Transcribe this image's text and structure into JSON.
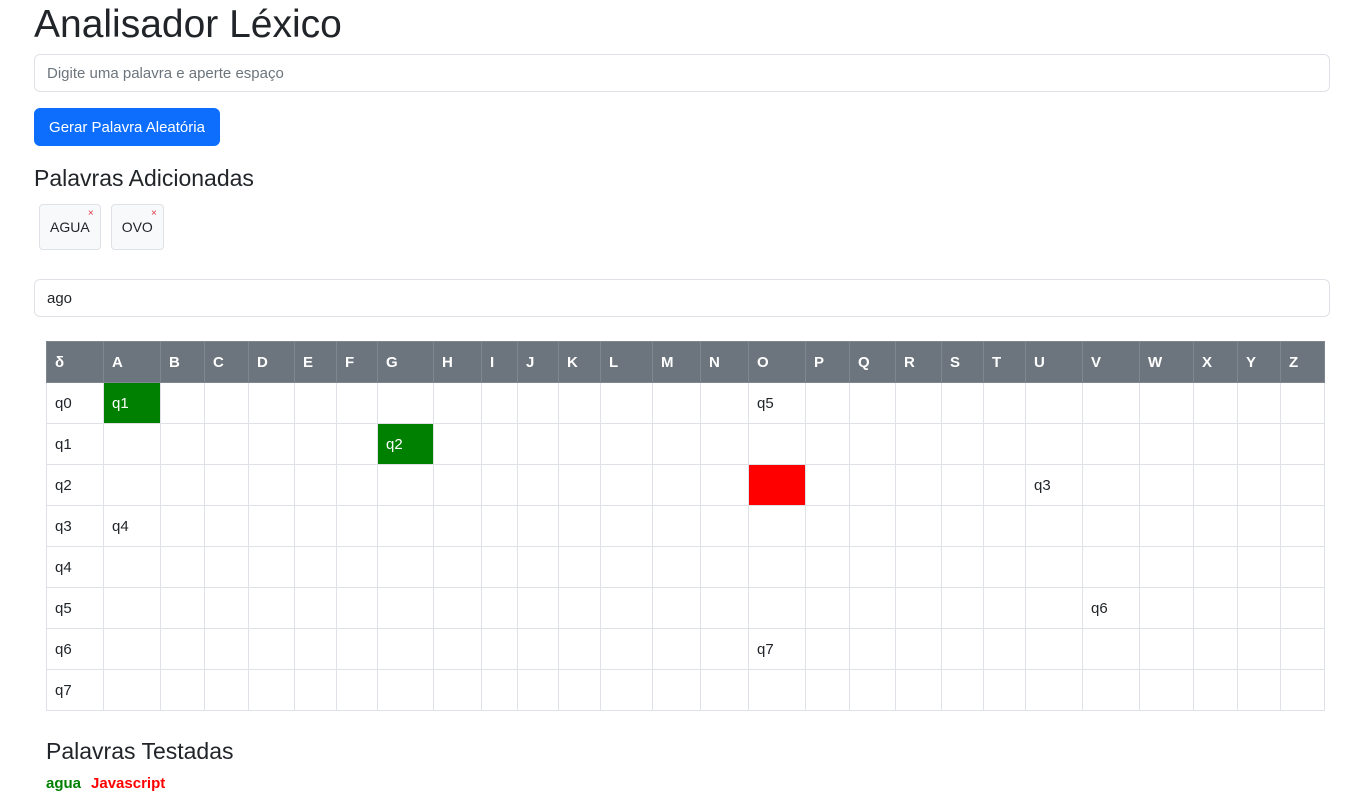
{
  "title": "Analisador Léxico",
  "word_input": {
    "placeholder": "Digite uma palavra e aperte espaço",
    "value": ""
  },
  "random_button": "Gerar Palavra Aleatória",
  "added_section": {
    "title": "Palavras Adicionadas",
    "words": [
      {
        "label": "AGUA",
        "remove": "×"
      },
      {
        "label": "OVO",
        "remove": "×"
      }
    ]
  },
  "test_input": {
    "value": "ago"
  },
  "table": {
    "corner": "δ",
    "columns": [
      "A",
      "B",
      "C",
      "D",
      "E",
      "F",
      "G",
      "H",
      "I",
      "J",
      "K",
      "L",
      "M",
      "N",
      "O",
      "P",
      "Q",
      "R",
      "S",
      "T",
      "U",
      "V",
      "W",
      "X",
      "Y",
      "Z"
    ],
    "rows": [
      {
        "state": "q0",
        "cells": [
          "q1",
          "",
          "",
          "",
          "",
          "",
          "",
          "",
          "",
          "",
          "",
          "",
          "",
          "",
          "q5",
          "",
          "",
          "",
          "",
          "",
          "",
          "",
          "",
          "",
          "",
          ""
        ],
        "green": [
          0
        ],
        "red": []
      },
      {
        "state": "q1",
        "cells": [
          "",
          "",
          "",
          "",
          "",
          "",
          "q2",
          "",
          "",
          "",
          "",
          "",
          "",
          "",
          "",
          "",
          "",
          "",
          "",
          "",
          "",
          "",
          "",
          "",
          "",
          ""
        ],
        "green": [
          6
        ],
        "red": []
      },
      {
        "state": "q2",
        "cells": [
          "",
          "",
          "",
          "",
          "",
          "",
          "",
          "",
          "",
          "",
          "",
          "",
          "",
          "",
          "",
          "",
          "",
          "",
          "",
          "",
          "q3",
          "",
          "",
          "",
          "",
          ""
        ],
        "green": [],
        "red": [
          14
        ]
      },
      {
        "state": "q3",
        "cells": [
          "q4",
          "",
          "",
          "",
          "",
          "",
          "",
          "",
          "",
          "",
          "",
          "",
          "",
          "",
          "",
          "",
          "",
          "",
          "",
          "",
          "",
          "",
          "",
          "",
          "",
          ""
        ],
        "green": [],
        "red": []
      },
      {
        "state": "q4",
        "cells": [
          "",
          "",
          "",
          "",
          "",
          "",
          "",
          "",
          "",
          "",
          "",
          "",
          "",
          "",
          "",
          "",
          "",
          "",
          "",
          "",
          "",
          "",
          "",
          "",
          "",
          ""
        ],
        "green": [],
        "red": []
      },
      {
        "state": "q5",
        "cells": [
          "",
          "",
          "",
          "",
          "",
          "",
          "",
          "",
          "",
          "",
          "",
          "",
          "",
          "",
          "",
          "",
          "",
          "",
          "",
          "",
          "",
          "q6",
          "",
          "",
          "",
          ""
        ],
        "green": [],
        "red": []
      },
      {
        "state": "q6",
        "cells": [
          "",
          "",
          "",
          "",
          "",
          "",
          "",
          "",
          "",
          "",
          "",
          "",
          "",
          "",
          "q7",
          "",
          "",
          "",
          "",
          "",
          "",
          "",
          "",
          "",
          "",
          ""
        ],
        "green": [],
        "red": []
      },
      {
        "state": "q7",
        "cells": [
          "",
          "",
          "",
          "",
          "",
          "",
          "",
          "",
          "",
          "",
          "",
          "",
          "",
          "",
          "",
          "",
          "",
          "",
          "",
          "",
          "",
          "",
          "",
          "",
          "",
          ""
        ],
        "green": [],
        "red": []
      }
    ]
  },
  "tested_section": {
    "title": "Palavras Testadas",
    "words": [
      {
        "text": "agua",
        "color": "#008000"
      },
      {
        "text": "Javascript",
        "color": "#ff0000"
      }
    ]
  },
  "colors": {
    "accept": "#008000",
    "reject": "#ff0000",
    "primary": "#0d6efd",
    "header": "#6c757d"
  }
}
